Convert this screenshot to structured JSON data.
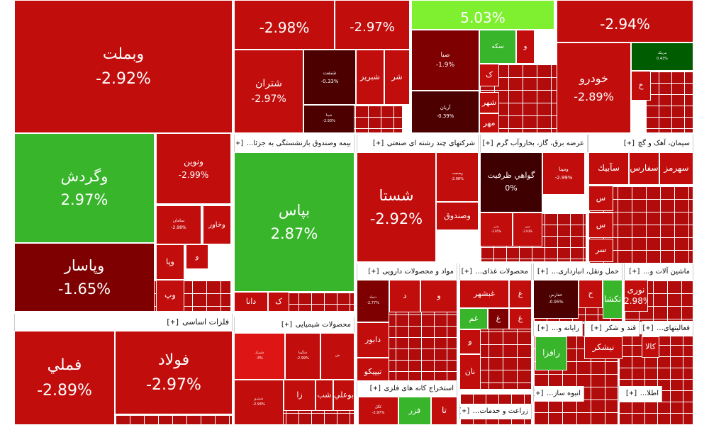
{
  "colors": {
    "red": "#c20d0d",
    "red_alt": "#b60a0a",
    "dark_red": "#7e0000",
    "darker_red": "#4d0000",
    "bright_red": "#dd1515",
    "green": "#38b52b",
    "bright_green": "#7ef02f",
    "dark_green": "#005c00",
    "neutral": "#3e0000"
  },
  "chart_data": {
    "type": "treemap",
    "title": "",
    "sectors": [
      {
        "label": "فلزات اساسی",
        "plus": "[+]"
      },
      {
        "label": "بیمه وصندوق بازنشستگی به جزئا...",
        "plus": "[+]"
      },
      {
        "label": "شرکتهای چند رشته ای صنعتی",
        "plus": "[+]"
      },
      {
        "label": "عرضه برق، گاز، بخاروآب گرم",
        "plus": "[+]"
      },
      {
        "label": "سیمان، آهک و گچ",
        "plus": "[+]"
      },
      {
        "label": "مواد و محصولات دارویی",
        "plus": "[+]"
      },
      {
        "label": "محصولات غذای...",
        "plus": "[+]"
      },
      {
        "label": "حمل ونقل، انبارداری...",
        "plus": "[+]"
      },
      {
        "label": "ماشین آلات و...",
        "plus": "[+]"
      },
      {
        "label": "محصولات شیمیایی",
        "plus": "[+]"
      },
      {
        "label": "رایانه و...",
        "plus": "[+]"
      },
      {
        "label": "قند و شکر",
        "plus": "[+]"
      },
      {
        "label": "فعالیتهای...",
        "plus": "[+]"
      },
      {
        "label": "استخراج کانه های فلزی",
        "plus": "[+]"
      },
      {
        "label": "انبوه ساز...",
        "plus": "[+]"
      },
      {
        "label": "زراعت و خدمات...",
        "plus": "[+]"
      },
      {
        "label": "اطلا...",
        "plus": "[+]"
      }
    ],
    "tiles": [
      {
        "name": "وبملت",
        "value": "-2.92%",
        "color": "red"
      },
      {
        "name": "",
        "value": "-2.98%",
        "color": "red"
      },
      {
        "name": "",
        "value": "-2.97%",
        "color": "red"
      },
      {
        "name": "",
        "value": "5.03%",
        "color": "bright_green"
      },
      {
        "name": "",
        "value": "-2.94%",
        "color": "red"
      },
      {
        "name": "وگردش",
        "value": "2.97%",
        "color": "green"
      },
      {
        "name": "ونوین",
        "value": "-2.99%",
        "color": "red"
      },
      {
        "name": "سامان",
        "value": "-2.98%",
        "color": "red"
      },
      {
        "name": "وخاور",
        "value": "",
        "color": "red"
      },
      {
        "name": "وپاسار",
        "value": "-1.65%",
        "color": "dark_red"
      },
      {
        "name": "وپا",
        "value": "",
        "color": "red"
      },
      {
        "name": "و",
        "value": "",
        "color": "red"
      },
      {
        "name": "وپ",
        "value": "",
        "color": "red"
      },
      {
        "name": "فولاد",
        "value": "-2.97%",
        "color": "red"
      },
      {
        "name": "فملي",
        "value": "-2.89%",
        "color": "red"
      },
      {
        "name": "شتران",
        "value": "-2.97%",
        "color": "red"
      },
      {
        "name": "شنفت",
        "value": "-0.33%",
        "color": "darker_red"
      },
      {
        "name": "شبریز",
        "value": "",
        "color": "red"
      },
      {
        "name": "شر",
        "value": "",
        "color": "red"
      },
      {
        "name": "شپنا",
        "value": "-2.93%",
        "color": "darker_red"
      },
      {
        "name": "سکه",
        "value": "",
        "color": "green"
      },
      {
        "name": "و",
        "value": "",
        "color": "red"
      },
      {
        "name": "صبا",
        "value": "-1.9%",
        "color": "dark_red"
      },
      {
        "name": "ک",
        "value": "",
        "color": "red"
      },
      {
        "name": "آریان",
        "value": "-0.39%",
        "color": "darker_red"
      },
      {
        "name": "شهر",
        "value": "",
        "color": "red"
      },
      {
        "name": "مهر",
        "value": "",
        "color": "red"
      },
      {
        "name": "خودرو",
        "value": "-2.89%",
        "color": "red"
      },
      {
        "name": "مرینک",
        "value": "0.43%",
        "color": "dark_green"
      },
      {
        "name": "خ",
        "value": "",
        "color": "red"
      },
      {
        "name": "بپاس",
        "value": "2.87%",
        "color": "green"
      },
      {
        "name": "دانا",
        "value": "",
        "color": "red"
      },
      {
        "name": "ک",
        "value": "",
        "color": "red"
      },
      {
        "name": "شستا",
        "value": "-2.92%",
        "color": "red"
      },
      {
        "name": "وصنعت",
        "value": "-2.98%",
        "color": "red"
      },
      {
        "name": "وصندوق",
        "value": "",
        "color": "red"
      },
      {
        "name": "گواهي ظرفيت",
        "value": "0%",
        "color": "neutral"
      },
      {
        "name": "ومپنا",
        "value": "-2.99%",
        "color": "red"
      },
      {
        "name": "بخزر",
        "value": "-2.95%",
        "color": "red"
      },
      {
        "name": "مبين",
        "value": "-2.93%",
        "color": "red"
      },
      {
        "name": "سهرمز",
        "value": "",
        "color": "red"
      },
      {
        "name": "سفارس",
        "value": "",
        "color": "red"
      },
      {
        "name": "سآبیك",
        "value": "",
        "color": "red"
      },
      {
        "name": "س",
        "value": "",
        "color": "red"
      },
      {
        "name": "س",
        "value": "",
        "color": "red"
      },
      {
        "name": "سر",
        "value": "",
        "color": "red"
      },
      {
        "name": "دتماد",
        "value": "-2.77%",
        "color": "dark_red"
      },
      {
        "name": "و",
        "value": "",
        "color": "red"
      },
      {
        "name": "د",
        "value": "",
        "color": "red"
      },
      {
        "name": "دابور",
        "value": "",
        "color": "red"
      },
      {
        "name": "تیپیکو",
        "value": "",
        "color": "red"
      },
      {
        "name": "غ",
        "value": "",
        "color": "red"
      },
      {
        "name": "غبشهر",
        "value": "",
        "color": "red"
      },
      {
        "name": "غم",
        "value": "",
        "color": "green"
      },
      {
        "name": "غ",
        "value": "",
        "color": "dark_red"
      },
      {
        "name": "غ",
        "value": "",
        "color": "red"
      },
      {
        "name": "و",
        "value": "",
        "color": "red"
      },
      {
        "name": "نان",
        "value": "",
        "color": "red"
      },
      {
        "name": "حفارس",
        "value": "-0.95%",
        "color": "darker_red"
      },
      {
        "name": "ح",
        "value": "",
        "color": "red"
      },
      {
        "name": "تکشا",
        "value": "",
        "color": "green"
      },
      {
        "name": "نوری",
        "value": "-2.98%",
        "color": "red"
      },
      {
        "name": "شیراز",
        "value": "-3%",
        "color": "bright_red"
      },
      {
        "name": "شگویا",
        "value": "-2.99%",
        "color": "red"
      },
      {
        "name": "ش",
        "value": "",
        "color": "red"
      },
      {
        "name": "بوعلي",
        "value": "",
        "color": "red"
      },
      {
        "name": "زا",
        "value": "",
        "color": "red"
      },
      {
        "name": "شب",
        "value": "",
        "color": "red"
      },
      {
        "name": "شپترو",
        "value": "-2.94%",
        "color": "red"
      },
      {
        "name": "تا",
        "value": "",
        "color": "red"
      },
      {
        "name": "فزر",
        "value": "",
        "color": "green"
      },
      {
        "name": "کگل",
        "value": "-2.97%",
        "color": "red"
      },
      {
        "name": "رافزا",
        "value": "",
        "color": "green"
      },
      {
        "name": "نیشکر",
        "value": "",
        "color": "red"
      },
      {
        "name": "کالا",
        "value": "",
        "color": "red"
      }
    ]
  }
}
